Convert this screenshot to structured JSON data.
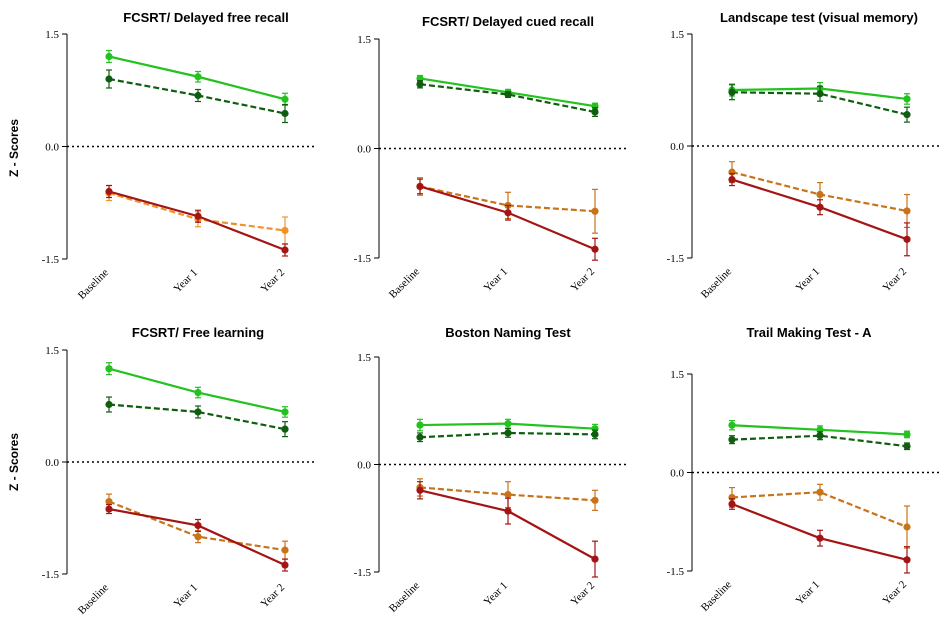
{
  "colors": {
    "light_green": "#22c21f",
    "dark_green": "#0f5e10",
    "light_orange": "#f0922a",
    "dark_orange": "#c8731a",
    "red": "#a41414"
  },
  "chart_data": [
    {
      "type": "line",
      "title": "FCSRT/ Delayed free recall",
      "ylabel": "Z - Scores",
      "categories": [
        "Baseline",
        "Year 1",
        "Year 2"
      ],
      "yticks": [
        "1.5",
        "0.0",
        "-1.5"
      ],
      "ylim": [
        -1.5,
        1.5
      ],
      "series": [
        {
          "color": "#22c21f",
          "dash": false,
          "values": [
            1.2,
            0.93,
            0.63
          ],
          "errors": [
            0.08,
            0.07,
            0.08
          ]
        },
        {
          "color": "#0f5e10",
          "dash": true,
          "values": [
            0.9,
            0.68,
            0.44
          ],
          "errors": [
            0.12,
            0.08,
            0.12
          ]
        },
        {
          "color": "#f0922a",
          "dash": true,
          "values": [
            -0.62,
            -0.97,
            -1.12
          ],
          "errors": [
            0.1,
            0.1,
            0.18
          ]
        },
        {
          "color": "#a41414",
          "dash": false,
          "values": [
            -0.6,
            -0.93,
            -1.38
          ],
          "errors": [
            0.08,
            0.08,
            0.08
          ]
        }
      ]
    },
    {
      "type": "line",
      "title": "FCSRT/ Delayed cued recall",
      "ylabel": "",
      "categories": [
        "Baseline",
        "Year 1",
        "Year 2"
      ],
      "yticks": [
        "1.5",
        "0.0",
        "-1.5"
      ],
      "ylim": [
        -1.5,
        1.5
      ],
      "series": [
        {
          "color": "#22c21f",
          "dash": false,
          "values": [
            0.96,
            0.77,
            0.58
          ],
          "errors": [
            0.04,
            0.04,
            0.04
          ]
        },
        {
          "color": "#0f5e10",
          "dash": true,
          "values": [
            0.88,
            0.74,
            0.5
          ],
          "errors": [
            0.05,
            0.04,
            0.06
          ]
        },
        {
          "color": "#c8731a",
          "dash": true,
          "values": [
            -0.52,
            -0.78,
            -0.86
          ],
          "errors": [
            0.12,
            0.18,
            0.3
          ]
        },
        {
          "color": "#a41414",
          "dash": false,
          "values": [
            -0.52,
            -0.88,
            -1.38
          ],
          "errors": [
            0.1,
            0.1,
            0.15
          ]
        }
      ]
    },
    {
      "type": "line",
      "title": "Landscape test (visual memory)",
      "ylabel": "",
      "categories": [
        "Baseline",
        "Year 1",
        "Year 2"
      ],
      "yticks": [
        "1.5",
        "0.0",
        "-1.5"
      ],
      "ylim": [
        -1.5,
        1.5
      ],
      "series": [
        {
          "color": "#22c21f",
          "dash": false,
          "values": [
            0.75,
            0.77,
            0.63
          ],
          "errors": [
            0.08,
            0.08,
            0.07
          ]
        },
        {
          "color": "#0f5e10",
          "dash": true,
          "values": [
            0.72,
            0.7,
            0.42
          ],
          "errors": [
            0.1,
            0.1,
            0.1
          ]
        },
        {
          "color": "#c8731a",
          "dash": true,
          "values": [
            -0.35,
            -0.65,
            -0.87
          ],
          "errors": [
            0.14,
            0.16,
            0.22
          ]
        },
        {
          "color": "#a41414",
          "dash": false,
          "values": [
            -0.45,
            -0.82,
            -1.25
          ],
          "errors": [
            0.08,
            0.1,
            0.22
          ]
        }
      ]
    },
    {
      "type": "line",
      "title": "FCSRT/ Free learning",
      "ylabel": "Z - Scores",
      "categories": [
        "Baseline",
        "Year 1",
        "Year 2"
      ],
      "yticks": [
        "1.5",
        "0.0",
        "-1.5"
      ],
      "ylim": [
        -1.5,
        1.5
      ],
      "series": [
        {
          "color": "#22c21f",
          "dash": false,
          "values": [
            1.25,
            0.93,
            0.67
          ],
          "errors": [
            0.08,
            0.07,
            0.07
          ]
        },
        {
          "color": "#0f5e10",
          "dash": true,
          "values": [
            0.77,
            0.67,
            0.44
          ],
          "errors": [
            0.1,
            0.08,
            0.1
          ]
        },
        {
          "color": "#c8731a",
          "dash": true,
          "values": [
            -0.53,
            -1.0,
            -1.18
          ],
          "errors": [
            0.1,
            0.08,
            0.12
          ]
        },
        {
          "color": "#a41414",
          "dash": false,
          "values": [
            -0.63,
            -0.85,
            -1.38
          ],
          "errors": [
            0.06,
            0.08,
            0.08
          ]
        }
      ]
    },
    {
      "type": "line",
      "title": "Boston Naming Test",
      "ylabel": "",
      "categories": [
        "Baseline",
        "Year 1",
        "Year 2"
      ],
      "yticks": [
        "1.5",
        "0.0",
        "-1.5"
      ],
      "ylim": [
        -1.5,
        1.5
      ],
      "series": [
        {
          "color": "#22c21f",
          "dash": false,
          "values": [
            0.55,
            0.57,
            0.5
          ],
          "errors": [
            0.08,
            0.06,
            0.06
          ]
        },
        {
          "color": "#0f5e10",
          "dash": true,
          "values": [
            0.38,
            0.44,
            0.42
          ],
          "errors": [
            0.06,
            0.06,
            0.06
          ]
        },
        {
          "color": "#c8731a",
          "dash": true,
          "values": [
            -0.32,
            -0.42,
            -0.5
          ],
          "errors": [
            0.12,
            0.18,
            0.14
          ]
        },
        {
          "color": "#a41414",
          "dash": false,
          "values": [
            -0.36,
            -0.65,
            -1.32
          ],
          "errors": [
            0.12,
            0.18,
            0.25
          ]
        }
      ]
    },
    {
      "type": "line",
      "title": "Trail Making Test - A",
      "ylabel": "",
      "categories": [
        "Baseline",
        "Year 1",
        "Year 2"
      ],
      "yticks": [
        "1.5",
        "0.0",
        "-1.5"
      ],
      "ylim": [
        -1.5,
        1.5
      ],
      "series": [
        {
          "color": "#22c21f",
          "dash": false,
          "values": [
            0.72,
            0.65,
            0.58
          ],
          "errors": [
            0.07,
            0.06,
            0.05
          ]
        },
        {
          "color": "#0f5e10",
          "dash": true,
          "values": [
            0.5,
            0.56,
            0.4
          ],
          "errors": [
            0.06,
            0.06,
            0.05
          ]
        },
        {
          "color": "#c8731a",
          "dash": true,
          "values": [
            -0.38,
            -0.3,
            -0.83
          ],
          "errors": [
            0.15,
            0.12,
            0.32
          ]
        },
        {
          "color": "#a41414",
          "dash": false,
          "values": [
            -0.48,
            -1.0,
            -1.33
          ],
          "errors": [
            0.08,
            0.12,
            0.2
          ]
        }
      ]
    }
  ]
}
